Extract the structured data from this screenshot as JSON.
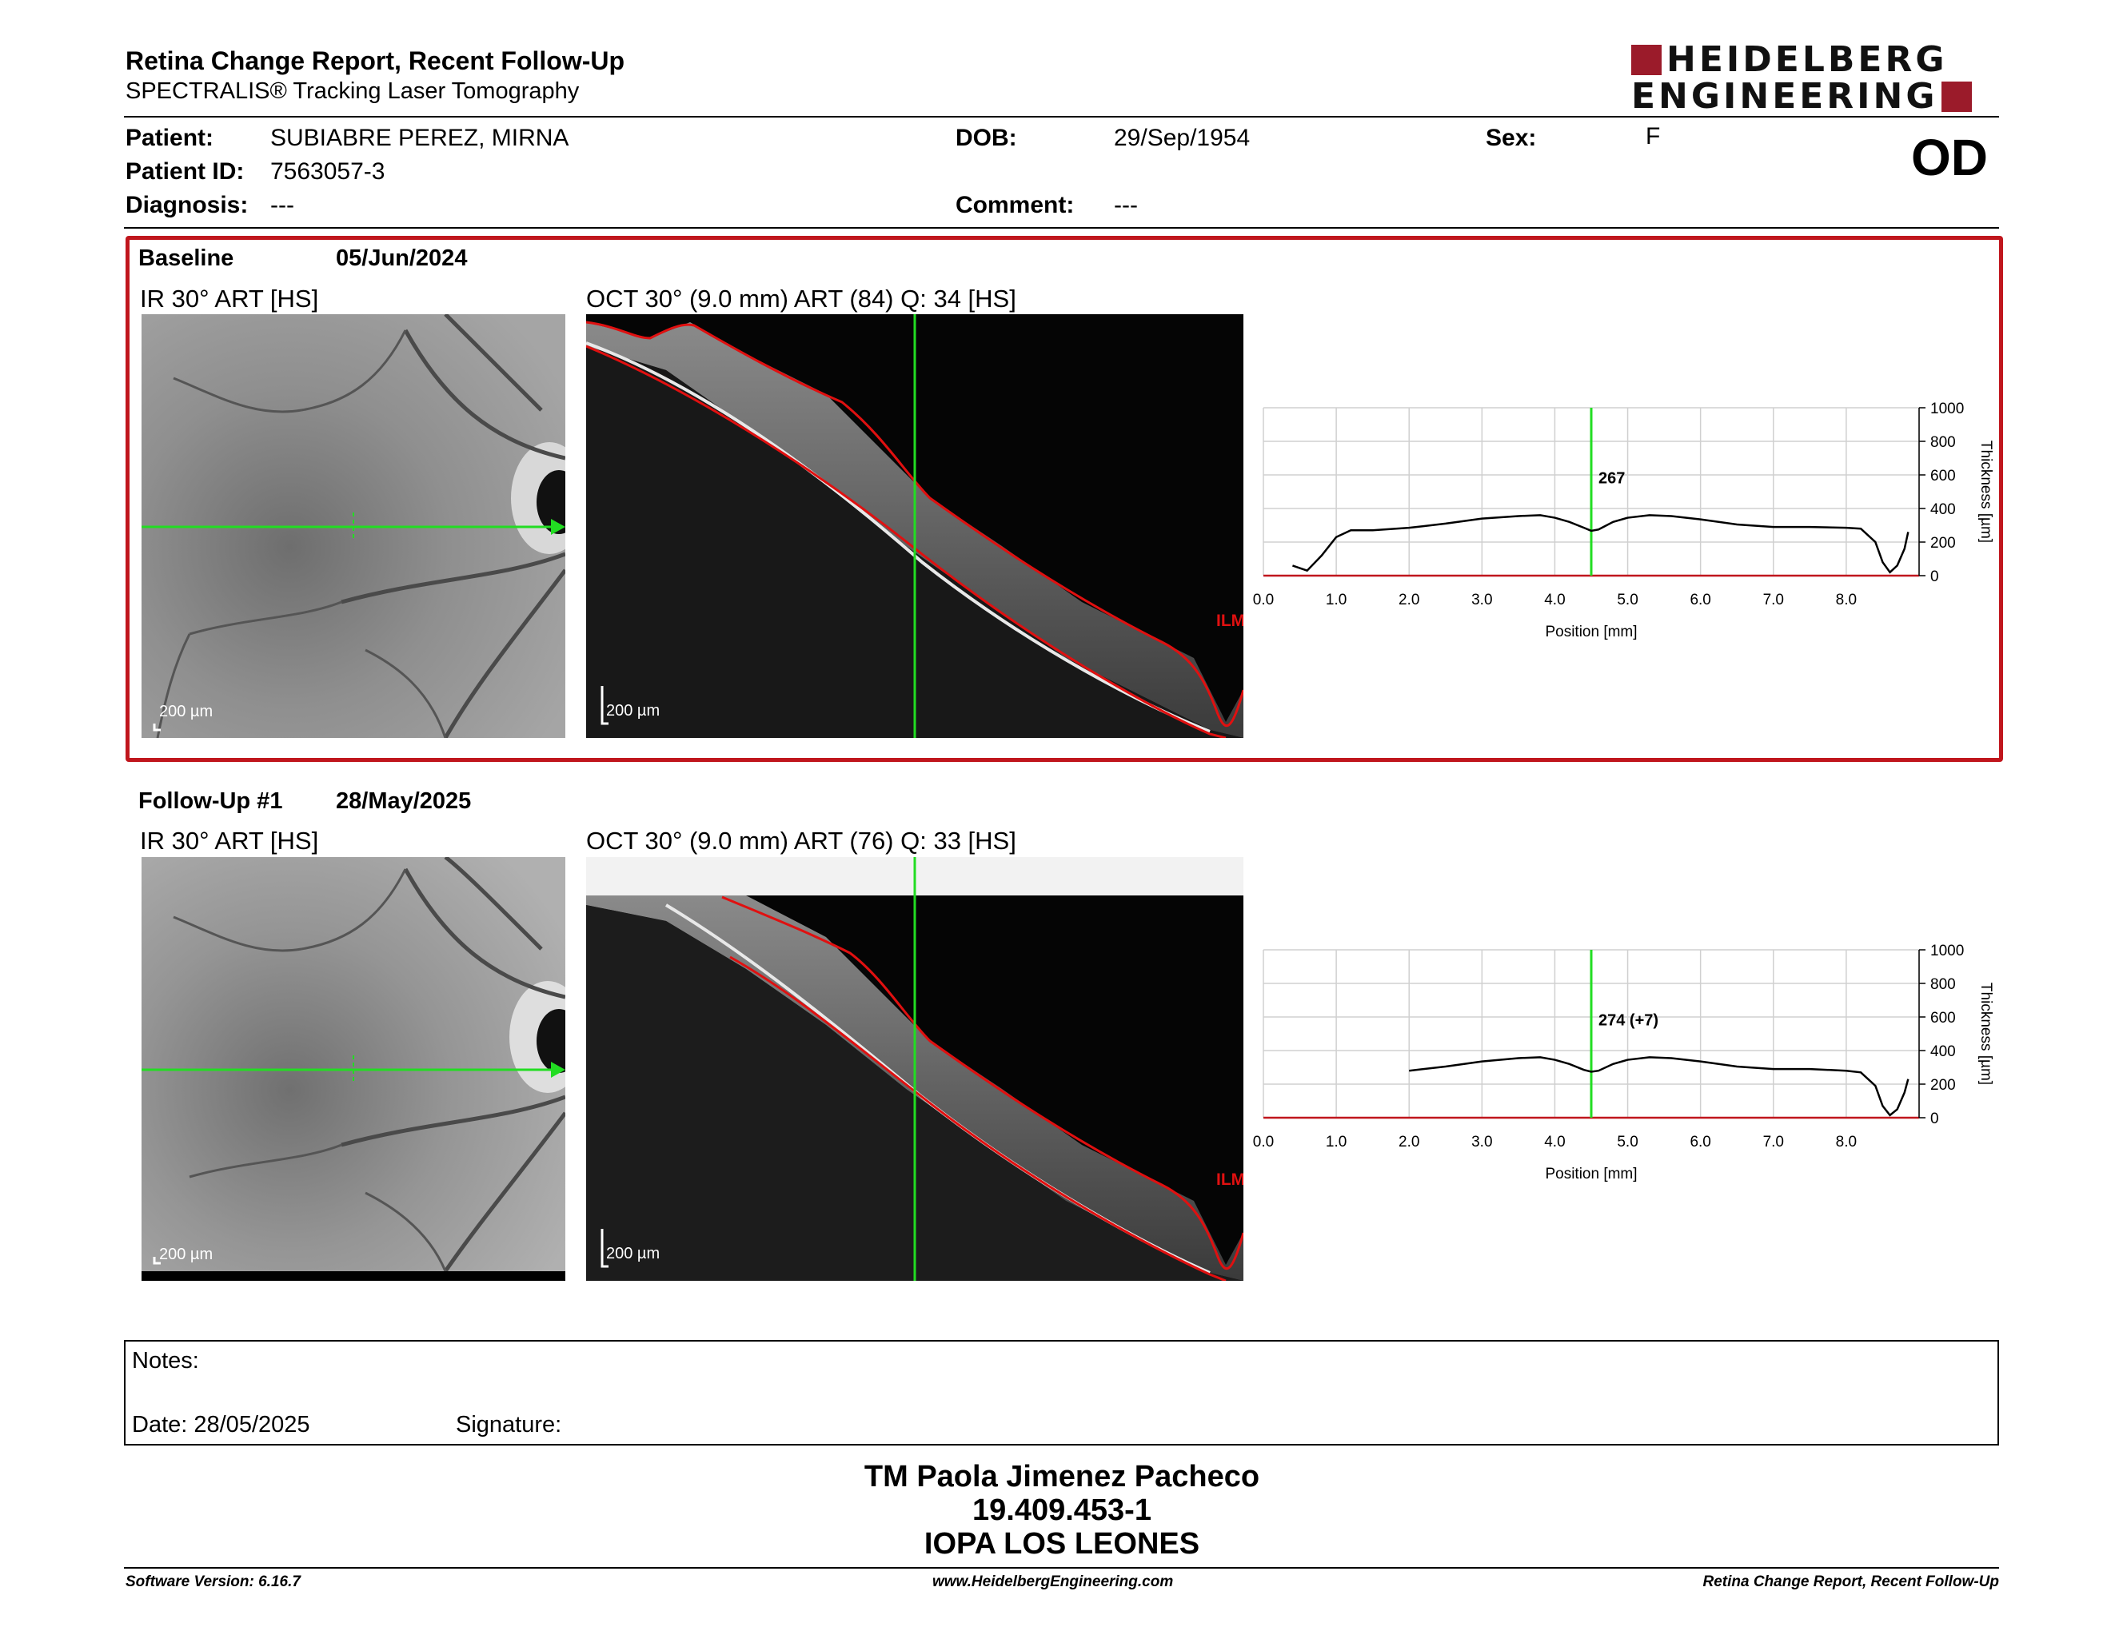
{
  "header": {
    "title": "Retina Change Report, Recent Follow-Up",
    "subtitle": "SPECTRALIS® Tracking Laser Tomography",
    "logo_line1": "HEIDELBERG",
    "logo_line2": "ENGINEERING",
    "eye": "OD"
  },
  "patient": {
    "patient_label": "Patient:",
    "patient_value": "SUBIABRE PEREZ, MIRNA",
    "id_label": "Patient ID:",
    "id_value": "7563057-3",
    "diagnosis_label": "Diagnosis:",
    "diagnosis_value": "---",
    "dob_label": "DOB:",
    "dob_value": "29/Sep/1954",
    "comment_label": "Comment:",
    "comment_value": "---",
    "sex_label": "Sex:",
    "sex_value": "F"
  },
  "baseline": {
    "label": "Baseline",
    "date": "05/Jun/2024",
    "ir_label": "IR 30° ART [HS]",
    "oct_label": "OCT 30° (9.0 mm) ART (84) Q: 34 [HS]",
    "ir_scale": "200 µm",
    "oct_scale": "200 µm",
    "ilm_label": "ILM"
  },
  "followup": {
    "label": "Follow-Up #1",
    "date": "28/May/2025",
    "ir_label": "IR 30° ART [HS]",
    "oct_label": "OCT 30° (9.0 mm) ART (76) Q: 33 [HS]",
    "ir_scale": "200 µm",
    "oct_scale": "200 µm",
    "ilm_label": "ILM"
  },
  "chart_data": [
    {
      "type": "line",
      "xlabel": "Position [mm]",
      "ylabel": "Thickness [µm]",
      "xlim": [
        0.0,
        9.0
      ],
      "ylim": [
        0,
        1000
      ],
      "x_ticks": [
        "0.0",
        "1.0",
        "2.0",
        "3.0",
        "4.0",
        "5.0",
        "6.0",
        "7.0",
        "8.0"
      ],
      "y_ticks": [
        "0",
        "200",
        "400",
        "600",
        "800",
        "1000"
      ],
      "grid": true,
      "cursor_x": 4.5,
      "cursor_label": "267",
      "series": [
        {
          "x": [
            0.4,
            0.6,
            0.8,
            1.0,
            1.2,
            1.5,
            2.0,
            2.5,
            3.0,
            3.5,
            3.8,
            4.0,
            4.2,
            4.4,
            4.5,
            4.6,
            4.8,
            5.0,
            5.3,
            5.6,
            6.0,
            6.5,
            7.0,
            7.5,
            8.0,
            8.2,
            8.4,
            8.5,
            8.6,
            8.7,
            8.8,
            8.85
          ],
          "y": [
            60,
            30,
            120,
            230,
            270,
            270,
            285,
            310,
            340,
            355,
            360,
            345,
            320,
            285,
            267,
            275,
            320,
            345,
            360,
            355,
            335,
            305,
            290,
            290,
            285,
            280,
            200,
            80,
            20,
            60,
            160,
            260
          ]
        }
      ]
    },
    {
      "type": "line",
      "xlabel": "Position [mm]",
      "ylabel": "Thickness [µm]",
      "xlim": [
        0.0,
        9.0
      ],
      "ylim": [
        0,
        1000
      ],
      "x_ticks": [
        "0.0",
        "1.0",
        "2.0",
        "3.0",
        "4.0",
        "5.0",
        "6.0",
        "7.0",
        "8.0"
      ],
      "y_ticks": [
        "0",
        "200",
        "400",
        "600",
        "800",
        "1000"
      ],
      "grid": true,
      "cursor_x": 4.5,
      "cursor_label": "274 (+7)",
      "series": [
        {
          "x": [
            2.0,
            2.5,
            3.0,
            3.5,
            3.8,
            4.0,
            4.2,
            4.4,
            4.5,
            4.6,
            4.8,
            5.0,
            5.3,
            5.6,
            6.0,
            6.5,
            7.0,
            7.5,
            8.0,
            8.2,
            8.4,
            8.5,
            8.6,
            8.7,
            8.8,
            8.85
          ],
          "y": [
            280,
            305,
            335,
            355,
            360,
            345,
            320,
            285,
            274,
            280,
            320,
            345,
            360,
            355,
            335,
            305,
            290,
            290,
            280,
            270,
            190,
            70,
            15,
            50,
            150,
            230
          ]
        }
      ]
    }
  ],
  "notes": {
    "label": "Notes:",
    "date": "Date: 28/05/2025",
    "signature": "Signature:"
  },
  "signature_block": {
    "name": "TM Paola Jimenez Pacheco",
    "id": "19.409.453-1",
    "institution": "IOPA LOS LEONES"
  },
  "footer": {
    "software": "Software Version: 6.16.7",
    "website": "www.HeidelbergEngineering.com",
    "report_name": "Retina Change Report, Recent Follow-Up"
  },
  "colors": {
    "accent_red": "#c0161d",
    "logo_red": "#9b1b2a",
    "scan_green": "#22dd22",
    "ilm_red": "#e01010"
  }
}
